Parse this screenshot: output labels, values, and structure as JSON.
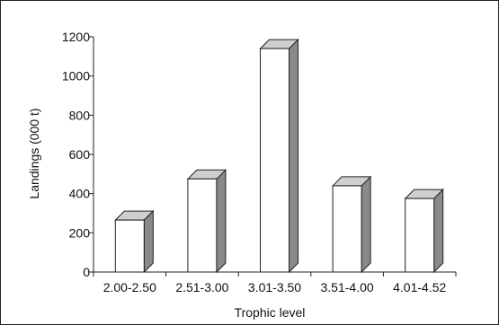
{
  "chart_data": {
    "type": "bar",
    "style": "3d",
    "categories": [
      "2.00-2.50",
      "2.51-3.00",
      "3.01-3.50",
      "3.51-4.00",
      "4.01-4.52"
    ],
    "values": [
      265,
      475,
      1140,
      440,
      375
    ],
    "xlabel": "Trophic level",
    "ylabel": "Landings (000 t)",
    "ylim": [
      0,
      1200
    ],
    "yticks": [
      0,
      200,
      400,
      600,
      800,
      1000,
      1200
    ],
    "grid": false,
    "legend": "none",
    "colors": {
      "bar_front": "#ffffff",
      "bar_top": "#cfcfcf",
      "bar_side": "#8a8a8a",
      "axis": "#222222"
    }
  }
}
